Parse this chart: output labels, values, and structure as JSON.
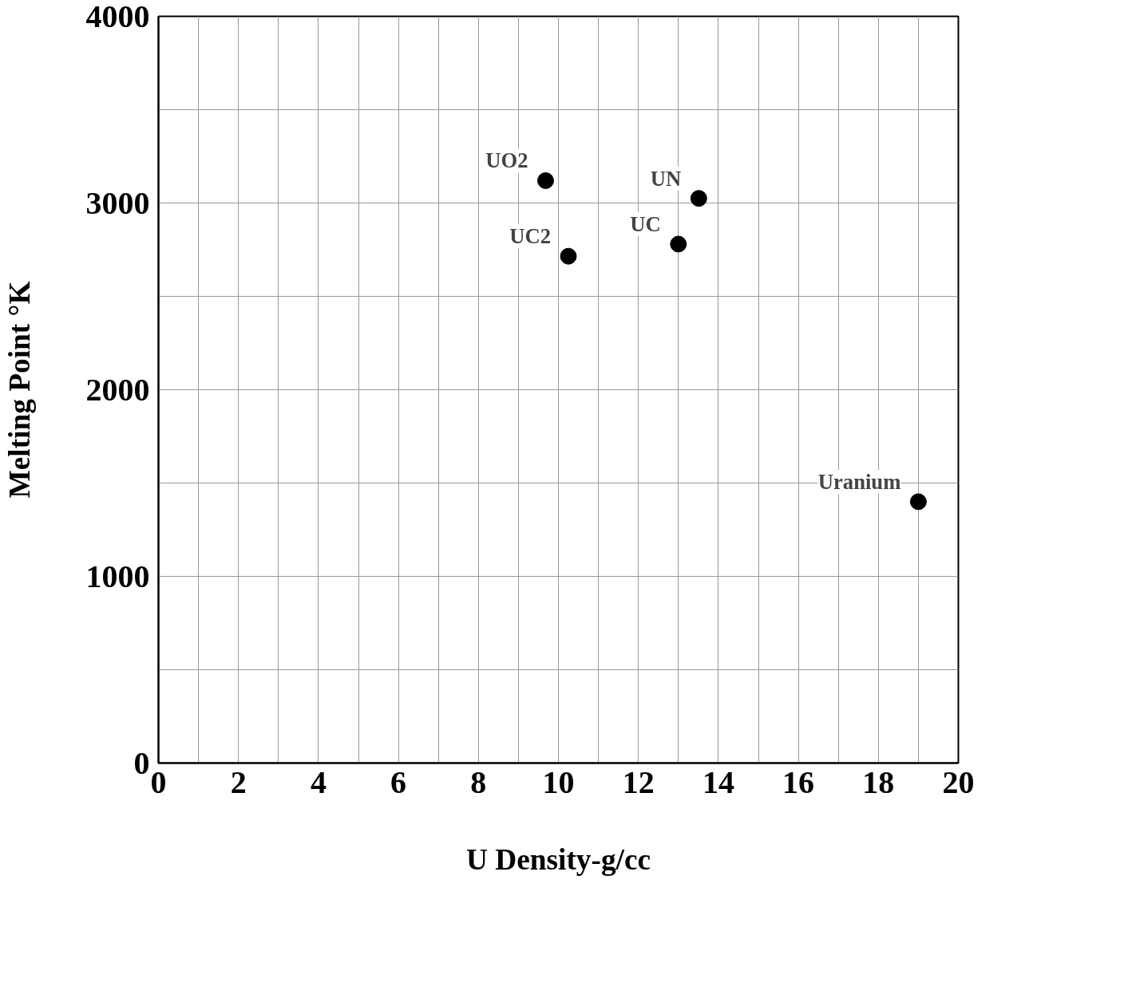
{
  "chart_data": {
    "type": "scatter",
    "xlabel": "U Density-g/cc",
    "ylabel": "Melting Point °K",
    "x": [
      9.68,
      10.25,
      13.0,
      13.51,
      19.0
    ],
    "series": [
      {
        "color": "#000000",
        "values": [
          3120,
          2715,
          2780,
          3025,
          1400
        ]
      }
    ],
    "marker": "circle",
    "grid": true,
    "xlim": [
      0,
      20
    ],
    "ylim": [
      0,
      4000
    ],
    "xticks": [
      0,
      {
        "value": 1,
        "label": null
      },
      2,
      {
        "value": 3,
        "label": null
      },
      4,
      {
        "value": 5,
        "label": null
      },
      6,
      {
        "value": 7,
        "label": null
      },
      8,
      {
        "value": 9,
        "label": null
      },
      10,
      {
        "value": 11,
        "label": null
      },
      12,
      {
        "value": 13,
        "label": null
      },
      14,
      {
        "value": 15,
        "label": null
      },
      16,
      {
        "value": 17,
        "label": null
      },
      18,
      {
        "value": 19,
        "label": null
      },
      20
    ],
    "yticks": [
      0,
      {
        "value": 500,
        "label": null
      },
      1000,
      {
        "value": 1500,
        "label": null
      },
      2000,
      {
        "value": 2500,
        "label": null
      },
      3000,
      {
        "value": 3500,
        "label": null
      },
      4000
    ],
    "annotations": [
      {
        "text": "UO2",
        "x": 9.68,
        "y": 3120
      },
      {
        "text": "UC2",
        "x": 10.25,
        "y": 2715
      },
      {
        "text": "UC",
        "x": 13.0,
        "y": 2780
      },
      {
        "text": "UN",
        "x": 13.51,
        "y": 3025
      },
      {
        "text": "Uranium",
        "x": 19.0,
        "y": 1400
      }
    ]
  }
}
